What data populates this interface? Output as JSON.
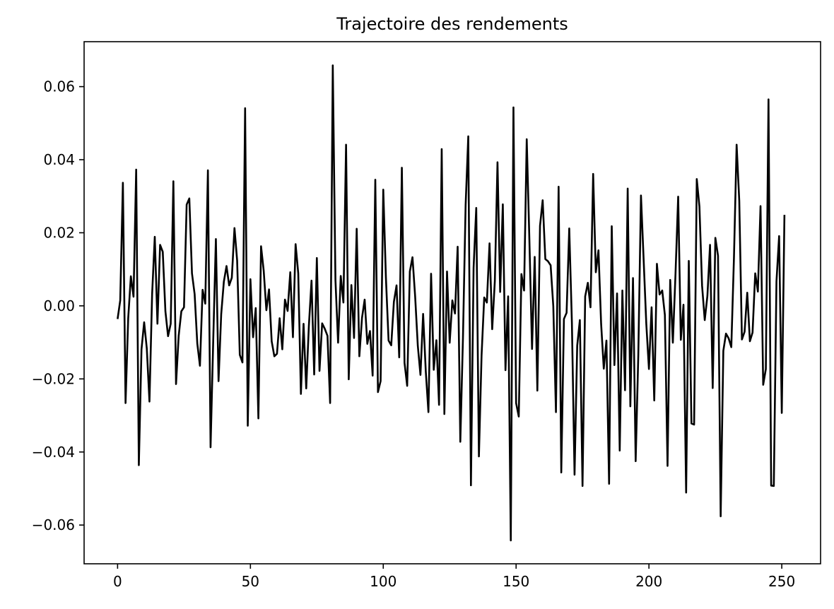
{
  "chart_data": {
    "type": "line",
    "title": "Trajectoire des rendements",
    "xlabel": "",
    "ylabel": "",
    "xlim": [
      -12.6,
      264.6
    ],
    "ylim": [
      -0.0706,
      0.0723
    ],
    "xticks": [
      0,
      50,
      100,
      150,
      200,
      250
    ],
    "xtick_labels": [
      "0",
      "50",
      "100",
      "150",
      "200",
      "250"
    ],
    "yticks": [
      -0.06,
      -0.04,
      -0.02,
      0.0,
      0.02,
      0.04,
      0.06
    ],
    "ytick_labels": [
      "−0.06",
      "−0.04",
      "−0.02",
      "0.00",
      "0.02",
      "0.04",
      "0.06"
    ],
    "grid": false,
    "legend": "none",
    "line_color": "#000000",
    "x": [
      0,
      1,
      2,
      3,
      4,
      5,
      6,
      7,
      8,
      9,
      10,
      11,
      12,
      13,
      14,
      15,
      16,
      17,
      18,
      19,
      20,
      21,
      22,
      23,
      24,
      25,
      26,
      27,
      28,
      29,
      30,
      31,
      32,
      33,
      34,
      35,
      36,
      37,
      38,
      39,
      40,
      41,
      42,
      43,
      44,
      45,
      46,
      47,
      48,
      49,
      50,
      51,
      52,
      53,
      54,
      55,
      56,
      57,
      58,
      59,
      60,
      61,
      62,
      63,
      64,
      65,
      66,
      67,
      68,
      69,
      70,
      71,
      72,
      73,
      74,
      75,
      76,
      77,
      78,
      79,
      80,
      81,
      82,
      83,
      84,
      85,
      86,
      87,
      88,
      89,
      90,
      91,
      92,
      93,
      94,
      95,
      96,
      97,
      98,
      99,
      100,
      101,
      102,
      103,
      104,
      105,
      106,
      107,
      108,
      109,
      110,
      111,
      112,
      113,
      114,
      115,
      116,
      117,
      118,
      119,
      120,
      121,
      122,
      123,
      124,
      125,
      126,
      127,
      128,
      129,
      130,
      131,
      132,
      133,
      134,
      135,
      136,
      137,
      138,
      139,
      140,
      141,
      142,
      143,
      144,
      145,
      146,
      147,
      148,
      149,
      150,
      151,
      152,
      153,
      154,
      155,
      156,
      157,
      158,
      159,
      160,
      161,
      162,
      163,
      164,
      165,
      166,
      167,
      168,
      169,
      170,
      171,
      172,
      173,
      174,
      175,
      176,
      177,
      178,
      179,
      180,
      181,
      182,
      183,
      184,
      185,
      186,
      187,
      188,
      189,
      190,
      191,
      192,
      193,
      194,
      195,
      196,
      197,
      198,
      199,
      200,
      201,
      202,
      203,
      204,
      205,
      206,
      207,
      208,
      209,
      210,
      211,
      212,
      213,
      214,
      215,
      216,
      217,
      218,
      219,
      220,
      221,
      222,
      223,
      224,
      225,
      226,
      227,
      228,
      229,
      230,
      231,
      232,
      233,
      234,
      235,
      236,
      237,
      238,
      239,
      240,
      241,
      242,
      243,
      244,
      245,
      246,
      247,
      248,
      249,
      250,
      251
    ],
    "y": [
      -0.0036,
      0.0015,
      0.0337,
      -0.0266,
      -0.0034,
      0.0081,
      0.0025,
      0.0373,
      -0.0436,
      -0.0119,
      -0.0045,
      -0.0117,
      -0.0262,
      0.0032,
      0.0189,
      -0.0049,
      0.0167,
      0.0148,
      -0.0015,
      -0.0083,
      -0.0049,
      0.0341,
      -0.0214,
      -0.0082,
      -0.0015,
      -0.0004,
      0.0277,
      0.0294,
      0.0089,
      0.0032,
      -0.0103,
      -0.0164,
      0.0044,
      0.0006,
      0.0371,
      -0.0387,
      -0.0095,
      0.0183,
      -0.0206,
      -0.0023,
      0.0066,
      0.0109,
      0.0056,
      0.0077,
      0.0213,
      0.0124,
      -0.0134,
      -0.0155,
      0.0541,
      -0.0328,
      0.0073,
      -0.0086,
      -0.0006,
      -0.0308,
      0.0163,
      0.0096,
      -0.0012,
      0.0045,
      -0.0097,
      -0.0138,
      -0.0131,
      -0.0034,
      -0.0119,
      0.0017,
      -0.0014,
      0.0092,
      -0.0086,
      0.0169,
      0.0089,
      -0.0241,
      -0.0049,
      -0.0226,
      -0.0055,
      0.0069,
      -0.0188,
      0.0131,
      -0.0178,
      -0.0048,
      -0.0063,
      -0.0082,
      -0.0266,
      0.0658,
      0.0071,
      -0.0101,
      0.0082,
      0.0009,
      0.0441,
      -0.0201,
      0.0057,
      -0.0088,
      0.0211,
      -0.0138,
      -0.0033,
      0.0017,
      -0.0104,
      -0.0069,
      -0.0191,
      0.0345,
      -0.0236,
      -0.0206,
      0.0318,
      0.0077,
      -0.0095,
      -0.0108,
      0.0011,
      0.0056,
      -0.0141,
      0.0378,
      -0.0156,
      -0.0219,
      0.0094,
      0.0133,
      0.0026,
      -0.0109,
      -0.0189,
      -0.0022,
      -0.0179,
      -0.0291,
      0.0088,
      -0.0175,
      -0.0094,
      -0.0271,
      0.0429,
      -0.0296,
      0.0094,
      -0.0101,
      0.0015,
      -0.0021,
      0.0162,
      -0.0372,
      -0.0087,
      0.0276,
      0.0464,
      -0.0491,
      0.0104,
      0.0268,
      -0.0412,
      -0.0136,
      0.0023,
      0.0009,
      0.0171,
      -0.0064,
      0.0068,
      0.0393,
      0.0038,
      0.0278,
      -0.0176,
      0.0026,
      -0.0642,
      0.0543,
      -0.0266,
      -0.0303,
      0.0087,
      0.0042,
      0.0456,
      0.0181,
      -0.0118,
      0.0134,
      -0.0232,
      0.0219,
      0.0289,
      0.0128,
      0.0122,
      0.0111,
      -0.0001,
      -0.0291,
      0.0326,
      -0.0456,
      -0.0036,
      -0.0019,
      0.0212,
      -0.0046,
      -0.0462,
      -0.0109,
      -0.0039,
      -0.0493,
      0.0026,
      0.0063,
      -0.0004,
      0.0361,
      0.0092,
      0.0152,
      -0.0049,
      -0.0172,
      -0.0095,
      -0.0487,
      0.0218,
      -0.0162,
      0.0034,
      -0.0396,
      0.0042,
      -0.0231,
      0.0321,
      -0.0275,
      0.0076,
      -0.0425,
      -0.0133,
      0.0302,
      0.0127,
      -0.0049,
      -0.0173,
      -0.0004,
      -0.0259,
      0.0115,
      0.0031,
      0.0042,
      -0.0025,
      -0.0438,
      0.0071,
      -0.0101,
      0.0088,
      0.0299,
      -0.0093,
      0.0003,
      -0.0511,
      0.0123,
      -0.0322,
      -0.0325,
      0.0347,
      0.0272,
      0.0055,
      -0.0039,
      0.0027,
      0.0167,
      -0.0225,
      0.0186,
      0.0137,
      -0.0576,
      -0.0123,
      -0.0076,
      -0.0089,
      -0.0113,
      0.0132,
      0.0441,
      0.0287,
      -0.0092,
      -0.0071,
      0.0036,
      -0.0097,
      -0.0073,
      0.0089,
      0.0039,
      0.0273,
      -0.0216,
      -0.0173,
      0.0565,
      -0.0492,
      -0.0493,
      0.0067,
      0.0191,
      -0.0293,
      0.0249
    ]
  }
}
